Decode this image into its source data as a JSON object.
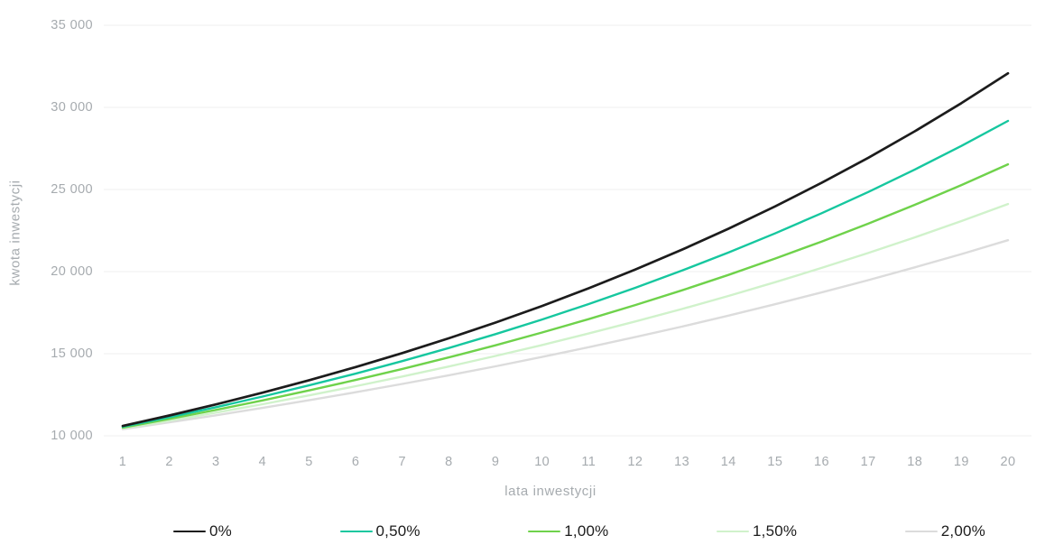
{
  "chart_data": {
    "type": "line",
    "title": "",
    "xlabel": "lata inwestycji",
    "ylabel": "kwota inwestycji",
    "x": [
      1,
      2,
      3,
      4,
      5,
      6,
      7,
      8,
      9,
      10,
      11,
      12,
      13,
      14,
      15,
      16,
      17,
      18,
      19,
      20
    ],
    "series": [
      {
        "name": "0%",
        "color": "#1c1c1c",
        "stroke_width": 2.7,
        "values": [
          10600,
          11236,
          11910,
          12625,
          13382,
          14185,
          15036,
          15938,
          16895,
          17908,
          18983,
          20122,
          21329,
          22609,
          23966,
          25404,
          26928,
          28543,
          30256,
          32071
        ]
      },
      {
        "name": "0,50%",
        "color": "#16c79f",
        "stroke_width": 2.4,
        "values": [
          10550,
          11130,
          11742,
          12388,
          13070,
          13788,
          14547,
          15347,
          16191,
          17081,
          18021,
          19012,
          20058,
          21161,
          22325,
          23553,
          24848,
          26215,
          27656,
          29178
        ]
      },
      {
        "name": "1,00%",
        "color": "#6fd24b",
        "stroke_width": 2.4,
        "values": [
          10500,
          11025,
          11576,
          12155,
          12763,
          13401,
          14071,
          14775,
          15513,
          16289,
          17103,
          17959,
          18856,
          19799,
          20789,
          21829,
          22920,
          24066,
          25270,
          26533
        ]
      },
      {
        "name": "1,50%",
        "color": "#d0f2cb",
        "stroke_width": 2.4,
        "values": [
          10450,
          10920,
          11412,
          11925,
          12462,
          13023,
          13609,
          14221,
          14861,
          15530,
          16229,
          16959,
          17722,
          18519,
          19353,
          20224,
          21134,
          22085,
          23079,
          24117
        ]
      },
      {
        "name": "2,00%",
        "color": "#dcdcdc",
        "stroke_width": 2.4,
        "values": [
          10400,
          10816,
          11249,
          11699,
          12167,
          12653,
          13159,
          13686,
          14233,
          14802,
          15395,
          16010,
          16651,
          17317,
          18009,
          18730,
          19479,
          20258,
          21068,
          21911
        ]
      }
    ],
    "ylim": [
      10000,
      35000
    ],
    "yticks": [
      {
        "value": 10000,
        "label": "10 000"
      },
      {
        "value": 15000,
        "label": "15 000"
      },
      {
        "value": 20000,
        "label": "20 000"
      },
      {
        "value": 25000,
        "label": "25 000"
      },
      {
        "value": 30000,
        "label": "30 000"
      },
      {
        "value": 35000,
        "label": "35 000"
      }
    ],
    "grid": "horizontal",
    "legend_position": "bottom"
  },
  "colors": {
    "background": "#ffffff",
    "gridline": "#efefef",
    "axis_text": "#a6abaf",
    "legend_text": "#1c1c1c"
  }
}
